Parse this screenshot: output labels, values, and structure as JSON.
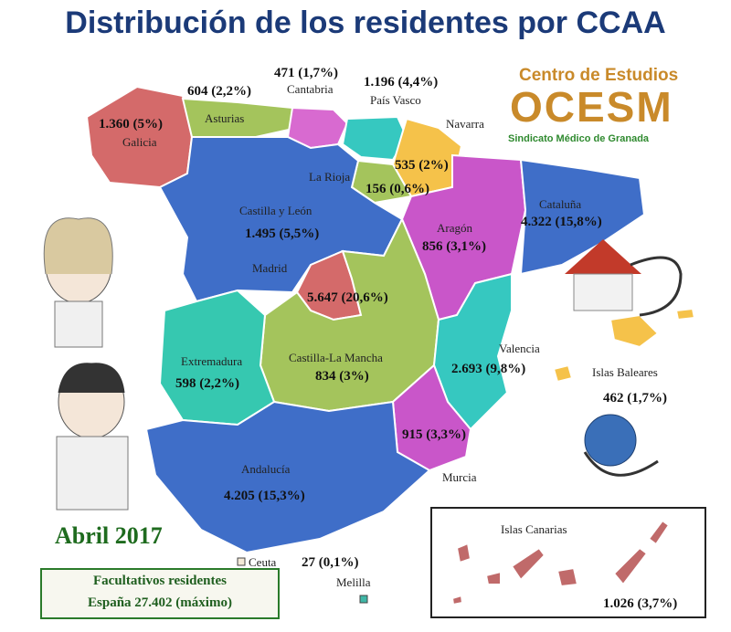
{
  "title": "Distribución de los residentes por CCAA",
  "logo": {
    "line1": "Centro de Estudios",
    "line2": "OCESM",
    "line3": "Sindicato Médico de Granada"
  },
  "date": "Abril 2017",
  "total": {
    "line1": "Facultativos residentes",
    "line2": "España 27.402 (máximo)"
  },
  "regions": {
    "galicia": {
      "name": "Galicia",
      "value": "1.360 (5%)",
      "color": "#d46a6a"
    },
    "asturias": {
      "name": "Asturias",
      "value": "604 (2,2%)",
      "color": "#a4c45c"
    },
    "cantabria": {
      "name": "Cantabria",
      "value": "471 (1,7%)",
      "color": "#d86ad0"
    },
    "pais_vasco": {
      "name": "País Vasco",
      "value": "1.196 (4,4%)",
      "color": "#36c8c0"
    },
    "navarra": {
      "name": "Navarra",
      "value": "535 (2%)",
      "color": "#f5c24a"
    },
    "la_rioja": {
      "name": "La Rioja",
      "value": "156 (0,6%)",
      "color": "#a4c45c"
    },
    "castilla_leon": {
      "name": "Castilla y León",
      "value": "1.495 (5,5%)",
      "color": "#3f6ec8"
    },
    "aragon": {
      "name": "Aragón",
      "value": "856 (3,1%)",
      "color": "#c956c9"
    },
    "cataluna": {
      "name": "Cataluña",
      "value": "4.322 (15,8%)",
      "color": "#3f6ec8"
    },
    "madrid": {
      "name": "Madrid",
      "value": "5.647 (20,6%)",
      "color": "#d46a6a"
    },
    "castilla_la_mancha": {
      "name": "Castilla-La Mancha",
      "value": "834 (3%)",
      "color": "#a4c45c"
    },
    "extremadura": {
      "name": "Extremadura",
      "value": "598 (2,2%)",
      "color": "#36c8b0"
    },
    "valencia": {
      "name": "Valencia",
      "value": "2.693 (9,8%)",
      "color": "#36c8c0"
    },
    "murcia": {
      "name": "Murcia",
      "value": "915 (3,3%)",
      "color": "#c956c9"
    },
    "andalucia": {
      "name": "Andalucía",
      "value": "4.205 (15,3%)",
      "color": "#3f6ec8"
    },
    "baleares": {
      "name": "Islas Baleares",
      "value": "462 (1,7%)",
      "color": "#f5c24a"
    },
    "canarias": {
      "name": "Islas Canarias",
      "value": "1.026 (3,7%)",
      "color": "#c06a6a"
    },
    "ceuta": {
      "name": "Ceuta",
      "value": "27 (0,1%)"
    },
    "melilla": {
      "name": "Melilla"
    }
  }
}
